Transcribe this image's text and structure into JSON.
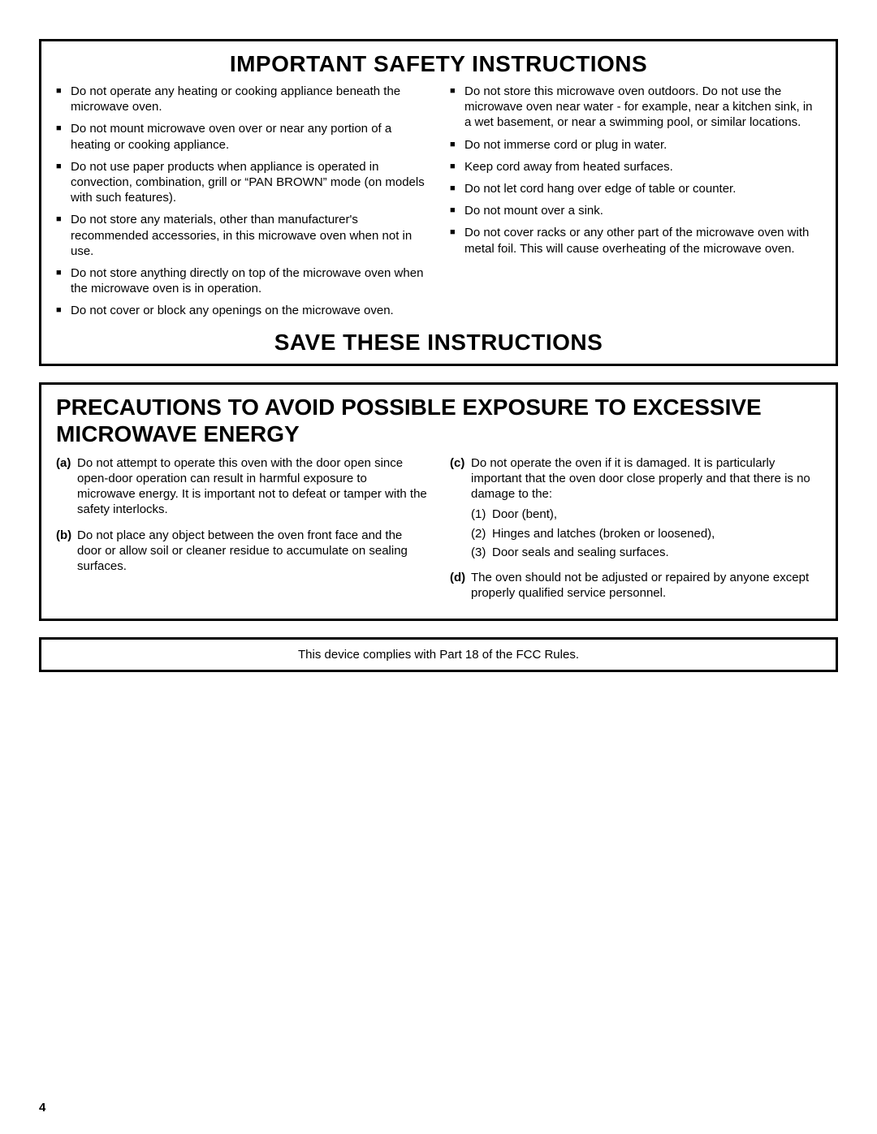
{
  "safety": {
    "title": "IMPORTANT SAFETY INSTRUCTIONS",
    "save_title": "SAVE THESE INSTRUCTIONS",
    "left_items": [
      "Do not operate any heating or cooking appliance beneath the microwave oven.",
      "Do not mount microwave oven over or near any portion of a heating or cooking appliance.",
      "Do not use paper products when appliance is operated in convection, combination, grill or “PAN BROWN” mode (on models with such features).",
      "Do not store any materials, other than manufacturer's recommended accessories, in this microwave oven when not in use.",
      "Do not store anything directly on top of the microwave oven when the microwave oven is in operation.",
      "Do not cover or block any openings on the microwave oven."
    ],
    "right_items": [
      "Do not store this microwave oven outdoors. Do not use the microwave oven near water - for example, near a kitchen sink, in a wet basement, or near a swimming pool, or similar locations.",
      "Do not immerse cord or plug in water.",
      "Keep cord away from heated surfaces.",
      "Do not let cord hang over edge of table or counter.",
      "Do not mount over a sink.",
      "Do not cover racks or any other part of the microwave oven with metal foil. This will cause overheating of the microwave oven."
    ]
  },
  "precautions": {
    "title": "PRECAUTIONS TO AVOID POSSIBLE EXPOSURE TO EXCESSIVE MICROWAVE ENERGY",
    "left_items": [
      {
        "marker": "(a)",
        "text": "Do not attempt to operate this oven with the door open since open-door operation can result in harmful exposure to microwave energy. It is important not to defeat or tamper with the safety interlocks."
      },
      {
        "marker": "(b)",
        "text": "Do not place any object between the oven front face and the door or allow soil or cleaner residue to accumulate on sealing surfaces."
      }
    ],
    "right_items": [
      {
        "marker": "(c)",
        "text": "Do not operate the oven if it is damaged. It is particularly important that the oven door close properly and that there is no damage to the:"
      },
      {
        "marker": "(d)",
        "text": "The oven should not be adjusted or repaired by anyone except properly qualified service personnel."
      }
    ],
    "c_subitems": [
      {
        "marker": "(1)",
        "text": "Door (bent),"
      },
      {
        "marker": "(2)",
        "text": "Hinges and latches (broken or loosened),"
      },
      {
        "marker": "(3)",
        "text": "Door seals and sealing surfaces."
      }
    ]
  },
  "fcc": {
    "text": "This device complies with Part 18 of the FCC Rules."
  },
  "page_number": "4"
}
